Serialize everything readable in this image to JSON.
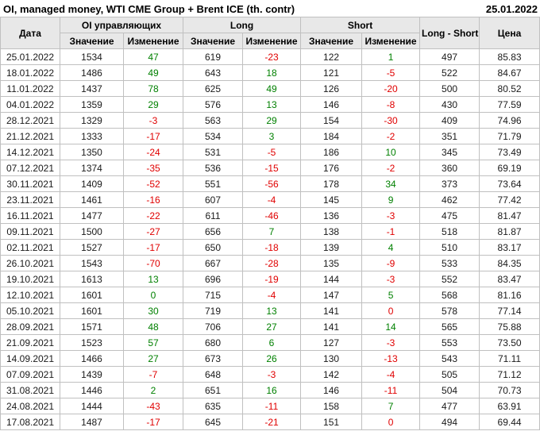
{
  "titlebar": {
    "title": "OI, managed money, WTI CME Group + Brent ICE (th. contr)",
    "report_date": "25.01.2022"
  },
  "colors": {
    "positive": "#008000",
    "negative": "#e00000",
    "header_bg": "#e8e8e8",
    "grid": "#c0c0c0"
  },
  "table": {
    "headers": {
      "date": "Дата",
      "oi_group": "OI управляющих",
      "long_group": "Long",
      "short_group": "Short",
      "value": "Значение",
      "change": "Изменение",
      "long_short": "Long - Short",
      "price": "Цена"
    },
    "rows": [
      {
        "date": "25.01.2022",
        "oi": {
          "value": "1534",
          "change": "47",
          "dir": "up"
        },
        "long": {
          "value": "619",
          "change": "-23",
          "dir": "down"
        },
        "short": {
          "value": "122",
          "change": "1",
          "dir": "up"
        },
        "long_short": "497",
        "price": "85.83"
      },
      {
        "date": "18.01.2022",
        "oi": {
          "value": "1486",
          "change": "49",
          "dir": "up"
        },
        "long": {
          "value": "643",
          "change": "18",
          "dir": "up"
        },
        "short": {
          "value": "121",
          "change": "-5",
          "dir": "down"
        },
        "long_short": "522",
        "price": "84.67"
      },
      {
        "date": "11.01.2022",
        "oi": {
          "value": "1437",
          "change": "78",
          "dir": "up"
        },
        "long": {
          "value": "625",
          "change": "49",
          "dir": "up"
        },
        "short": {
          "value": "126",
          "change": "-20",
          "dir": "down"
        },
        "long_short": "500",
        "price": "80.52"
      },
      {
        "date": "04.01.2022",
        "oi": {
          "value": "1359",
          "change": "29",
          "dir": "up"
        },
        "long": {
          "value": "576",
          "change": "13",
          "dir": "up"
        },
        "short": {
          "value": "146",
          "change": "-8",
          "dir": "down"
        },
        "long_short": "430",
        "price": "77.59"
      },
      {
        "date": "28.12.2021",
        "oi": {
          "value": "1329",
          "change": "-3",
          "dir": "down"
        },
        "long": {
          "value": "563",
          "change": "29",
          "dir": "up"
        },
        "short": {
          "value": "154",
          "change": "-30",
          "dir": "down"
        },
        "long_short": "409",
        "price": "74.96"
      },
      {
        "date": "21.12.2021",
        "oi": {
          "value": "1333",
          "change": "-17",
          "dir": "down"
        },
        "long": {
          "value": "534",
          "change": "3",
          "dir": "up"
        },
        "short": {
          "value": "184",
          "change": "-2",
          "dir": "down"
        },
        "long_short": "351",
        "price": "71.79"
      },
      {
        "date": "14.12.2021",
        "oi": {
          "value": "1350",
          "change": "-24",
          "dir": "down"
        },
        "long": {
          "value": "531",
          "change": "-5",
          "dir": "down"
        },
        "short": {
          "value": "186",
          "change": "10",
          "dir": "up"
        },
        "long_short": "345",
        "price": "73.49"
      },
      {
        "date": "07.12.2021",
        "oi": {
          "value": "1374",
          "change": "-35",
          "dir": "down"
        },
        "long": {
          "value": "536",
          "change": "-15",
          "dir": "down"
        },
        "short": {
          "value": "176",
          "change": "-2",
          "dir": "down"
        },
        "long_short": "360",
        "price": "69.19"
      },
      {
        "date": "30.11.2021",
        "oi": {
          "value": "1409",
          "change": "-52",
          "dir": "down"
        },
        "long": {
          "value": "551",
          "change": "-56",
          "dir": "down"
        },
        "short": {
          "value": "178",
          "change": "34",
          "dir": "up"
        },
        "long_short": "373",
        "price": "73.64"
      },
      {
        "date": "23.11.2021",
        "oi": {
          "value": "1461",
          "change": "-16",
          "dir": "down"
        },
        "long": {
          "value": "607",
          "change": "-4",
          "dir": "down"
        },
        "short": {
          "value": "145",
          "change": "9",
          "dir": "up"
        },
        "long_short": "462",
        "price": "77.42"
      },
      {
        "date": "16.11.2021",
        "oi": {
          "value": "1477",
          "change": "-22",
          "dir": "down"
        },
        "long": {
          "value": "611",
          "change": "-46",
          "dir": "down"
        },
        "short": {
          "value": "136",
          "change": "-3",
          "dir": "down"
        },
        "long_short": "475",
        "price": "81.47"
      },
      {
        "date": "09.11.2021",
        "oi": {
          "value": "1500",
          "change": "-27",
          "dir": "down"
        },
        "long": {
          "value": "656",
          "change": "7",
          "dir": "up"
        },
        "short": {
          "value": "138",
          "change": "-1",
          "dir": "down"
        },
        "long_short": "518",
        "price": "81.87"
      },
      {
        "date": "02.11.2021",
        "oi": {
          "value": "1527",
          "change": "-17",
          "dir": "down"
        },
        "long": {
          "value": "650",
          "change": "-18",
          "dir": "down"
        },
        "short": {
          "value": "139",
          "change": "4",
          "dir": "up"
        },
        "long_short": "510",
        "price": "83.17"
      },
      {
        "date": "26.10.2021",
        "oi": {
          "value": "1543",
          "change": "-70",
          "dir": "down"
        },
        "long": {
          "value": "667",
          "change": "-28",
          "dir": "down"
        },
        "short": {
          "value": "135",
          "change": "-9",
          "dir": "down"
        },
        "long_short": "533",
        "price": "84.35"
      },
      {
        "date": "19.10.2021",
        "oi": {
          "value": "1613",
          "change": "13",
          "dir": "up"
        },
        "long": {
          "value": "696",
          "change": "-19",
          "dir": "down"
        },
        "short": {
          "value": "144",
          "change": "-3",
          "dir": "down"
        },
        "long_short": "552",
        "price": "83.47"
      },
      {
        "date": "12.10.2021",
        "oi": {
          "value": "1601",
          "change": "0",
          "dir": "up"
        },
        "long": {
          "value": "715",
          "change": "-4",
          "dir": "down"
        },
        "short": {
          "value": "147",
          "change": "5",
          "dir": "up"
        },
        "long_short": "568",
        "price": "81.16"
      },
      {
        "date": "05.10.2021",
        "oi": {
          "value": "1601",
          "change": "30",
          "dir": "up"
        },
        "long": {
          "value": "719",
          "change": "13",
          "dir": "up"
        },
        "short": {
          "value": "141",
          "change": "0",
          "dir": "down"
        },
        "long_short": "578",
        "price": "77.14"
      },
      {
        "date": "28.09.2021",
        "oi": {
          "value": "1571",
          "change": "48",
          "dir": "up"
        },
        "long": {
          "value": "706",
          "change": "27",
          "dir": "up"
        },
        "short": {
          "value": "141",
          "change": "14",
          "dir": "up"
        },
        "long_short": "565",
        "price": "75.88"
      },
      {
        "date": "21.09.2021",
        "oi": {
          "value": "1523",
          "change": "57",
          "dir": "up"
        },
        "long": {
          "value": "680",
          "change": "6",
          "dir": "up"
        },
        "short": {
          "value": "127",
          "change": "-3",
          "dir": "down"
        },
        "long_short": "553",
        "price": "73.50"
      },
      {
        "date": "14.09.2021",
        "oi": {
          "value": "1466",
          "change": "27",
          "dir": "up"
        },
        "long": {
          "value": "673",
          "change": "26",
          "dir": "up"
        },
        "short": {
          "value": "130",
          "change": "-13",
          "dir": "down"
        },
        "long_short": "543",
        "price": "71.11"
      },
      {
        "date": "07.09.2021",
        "oi": {
          "value": "1439",
          "change": "-7",
          "dir": "down"
        },
        "long": {
          "value": "648",
          "change": "-3",
          "dir": "down"
        },
        "short": {
          "value": "142",
          "change": "-4",
          "dir": "down"
        },
        "long_short": "505",
        "price": "71.12"
      },
      {
        "date": "31.08.2021",
        "oi": {
          "value": "1446",
          "change": "2",
          "dir": "up"
        },
        "long": {
          "value": "651",
          "change": "16",
          "dir": "up"
        },
        "short": {
          "value": "146",
          "change": "-11",
          "dir": "down"
        },
        "long_short": "504",
        "price": "70.73"
      },
      {
        "date": "24.08.2021",
        "oi": {
          "value": "1444",
          "change": "-43",
          "dir": "down"
        },
        "long": {
          "value": "635",
          "change": "-11",
          "dir": "down"
        },
        "short": {
          "value": "158",
          "change": "7",
          "dir": "up"
        },
        "long_short": "477",
        "price": "63.91"
      },
      {
        "date": "17.08.2021",
        "oi": {
          "value": "1487",
          "change": "-17",
          "dir": "down"
        },
        "long": {
          "value": "645",
          "change": "-21",
          "dir": "down"
        },
        "short": {
          "value": "151",
          "change": "0",
          "dir": "down"
        },
        "long_short": "494",
        "price": "69.44"
      }
    ]
  }
}
